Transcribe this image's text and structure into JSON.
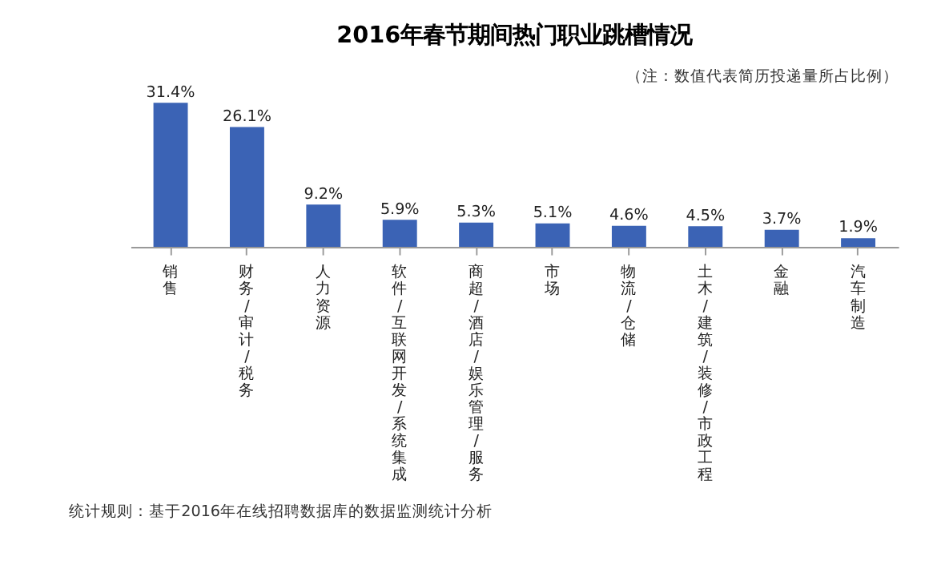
{
  "chart_data": {
    "type": "bar",
    "title": "2016年春节期间热门职业跳槽情况",
    "subtitle": "（注：数值代表简历投递量所占比例）",
    "categories": [
      "销售",
      "财务/审计/税务",
      "人力资源",
      "软件/互联网开发/系统集成",
      "商超/酒店/娱乐管理/服务",
      "市场",
      "物流/仓储",
      "土木/建筑/装修/市政工程",
      "金融",
      "汽车制造"
    ],
    "values": [
      31.4,
      26.1,
      9.2,
      5.9,
      5.3,
      5.1,
      4.6,
      4.5,
      3.7,
      1.9
    ],
    "value_labels": [
      "31.4%",
      "26.1%",
      "9.2%",
      "5.9%",
      "5.3%",
      "5.1%",
      "4.6%",
      "4.5%",
      "3.7%",
      "1.9%"
    ],
    "color": "#3b63b5",
    "grid": false,
    "annotations": [
      "统计规则：基于2016年在线招聘数据库的数据监测统计分析"
    ]
  }
}
